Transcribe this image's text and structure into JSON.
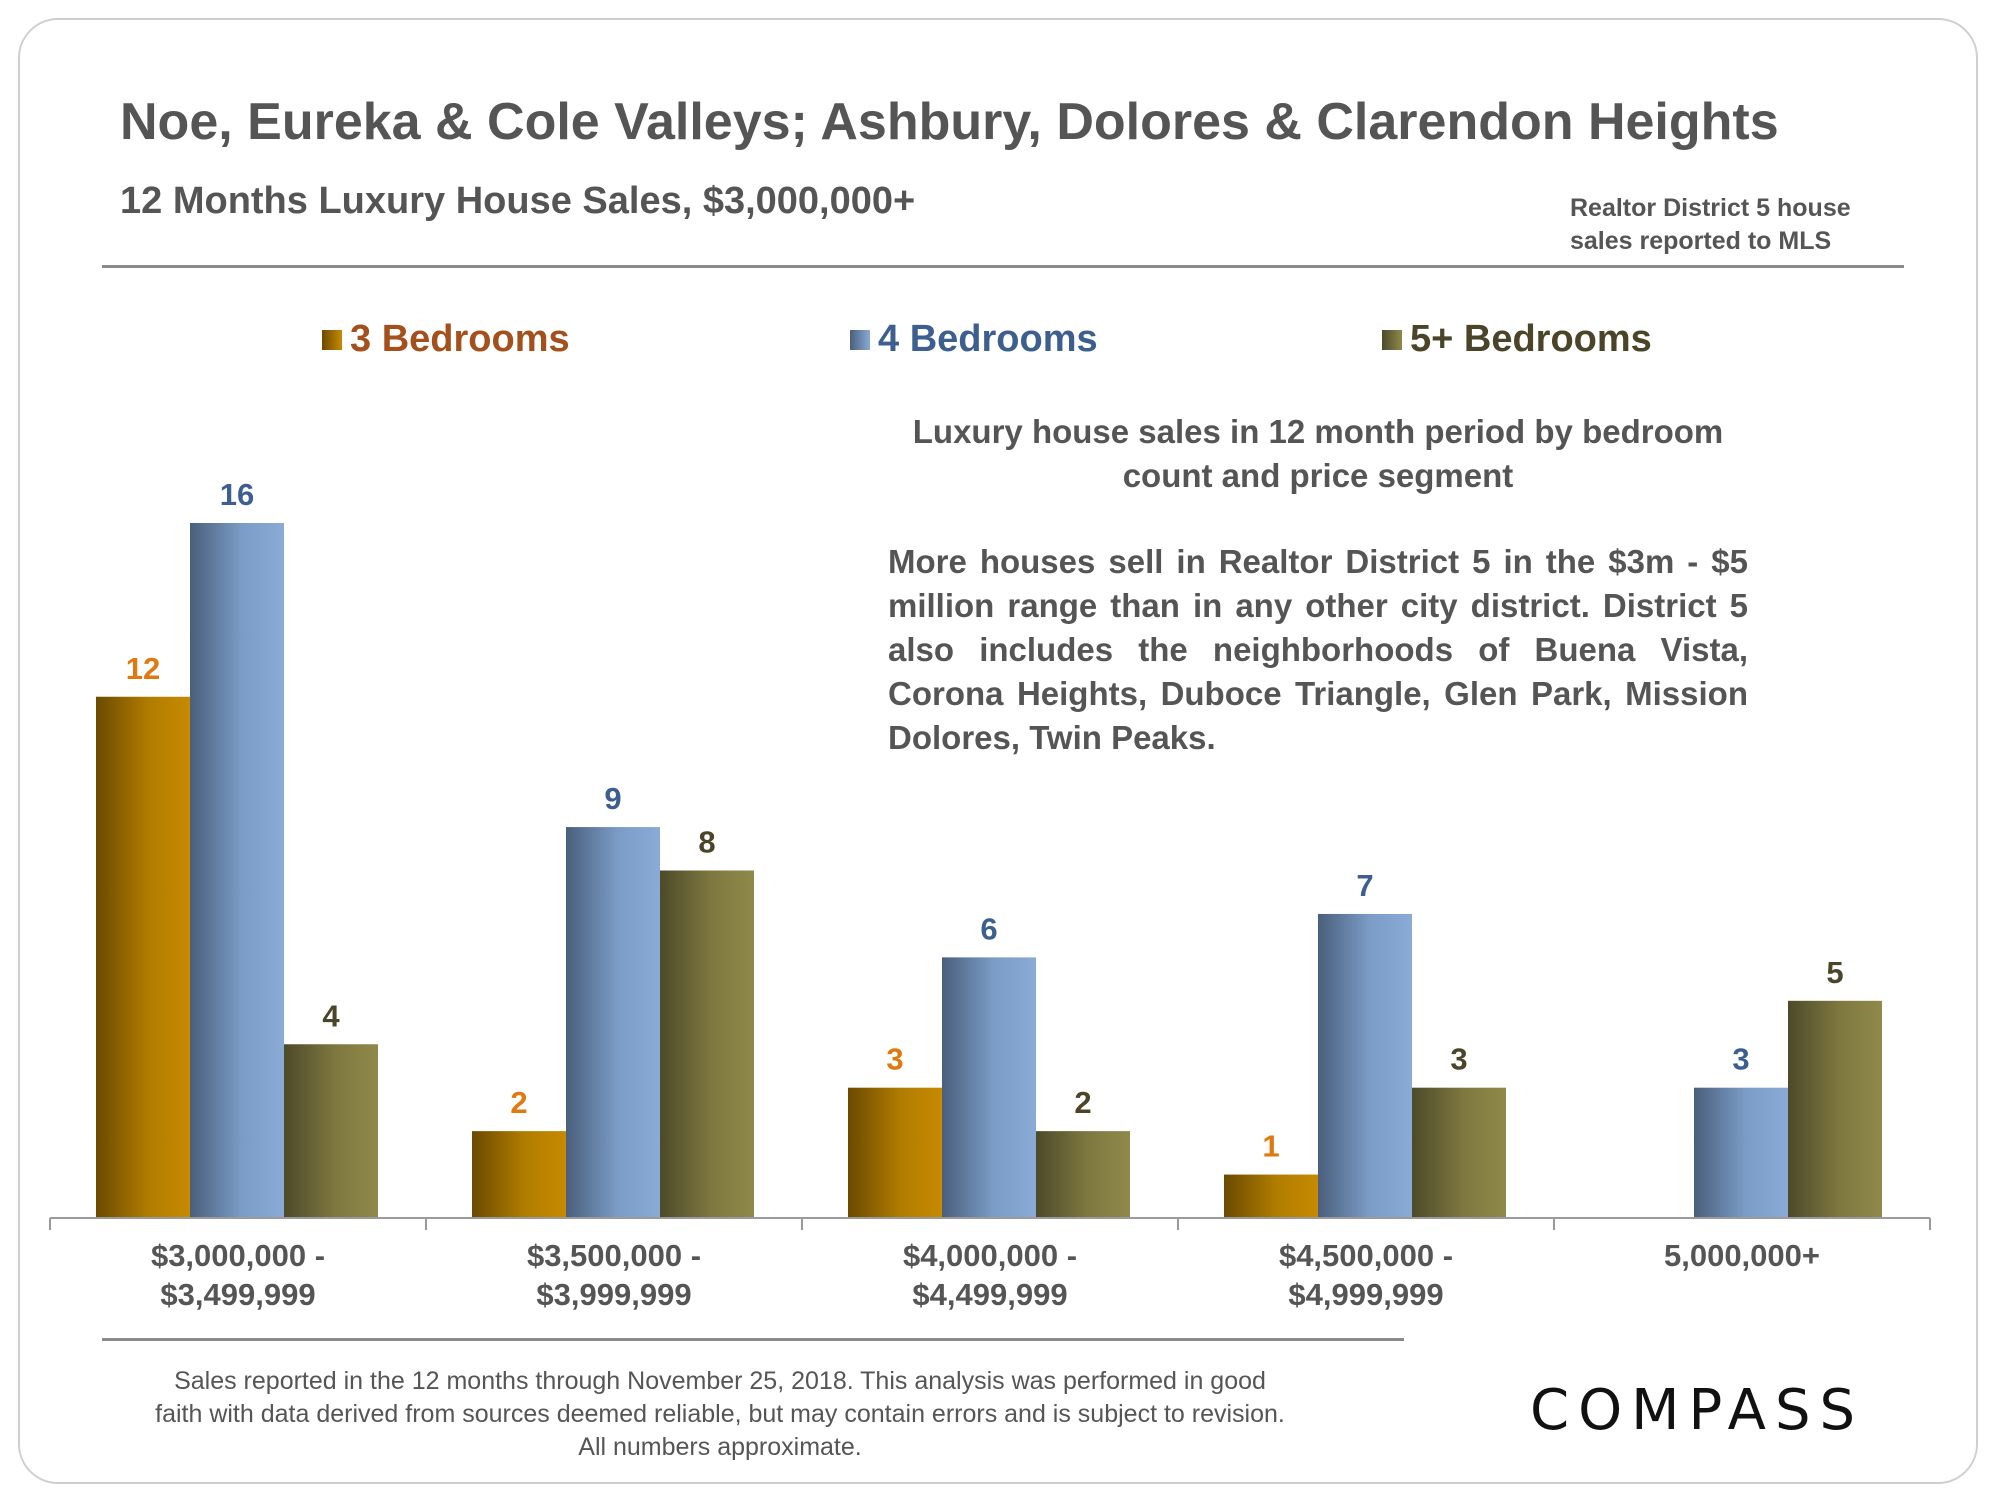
{
  "title": "Noe, Eureka & Cole Valleys; Ashbury, Dolores & Clarendon Heights",
  "subtitle": "12 Months Luxury House Sales, $3,000,000+",
  "source_note": "Realtor District 5 house sales reported to MLS",
  "annotation_heading": "Luxury house sales in 12 month period by bedroom count and price segment",
  "annotation_body": "More houses sell in Realtor District 5 in the $3m - $5 million range than in any other city district. District 5 also includes the neighborhoods of Buena Vista, Corona Heights, Duboce Triangle, Glen Park, Mission Dolores, Twin Peaks.",
  "footnote": "Sales reported in the 12 months through November 25, 2018. This analysis was performed in good faith with data derived from sources deemed reliable, but may contain errors and is subject to revision. All numbers approximate.",
  "logo": "COMPASS",
  "colors": {
    "bed3": "#c78a00",
    "bed4": "#8aabd6",
    "bed5": "#8f8a4a",
    "label_bed3": "#e07a10",
    "label_bed4": "#3d5f8f",
    "label_bed5": "#4a4528",
    "legend_bed3": "#a4501c",
    "legend_bed4": "#3d5f8f",
    "legend_bed5": "#4a4528",
    "text": "#555555"
  },
  "chart_data": {
    "type": "bar",
    "title": "12 Months Luxury House Sales, $3,000,000+",
    "categories": [
      "$3,000,000 -\n$3,499,999",
      "$3,500,000 -\n$3,999,999",
      "$4,000,000 -\n$4,499,999",
      "$4,500,000 -\n$4,999,999",
      "5,000,000+"
    ],
    "series": [
      {
        "name": "3 Bedrooms",
        "values": [
          12,
          2,
          3,
          1,
          null
        ]
      },
      {
        "name": "4 Bedrooms",
        "values": [
          16,
          9,
          6,
          7,
          3
        ]
      },
      {
        "name": "5+ Bedrooms",
        "values": [
          4,
          8,
          2,
          3,
          5
        ]
      }
    ],
    "ylim": [
      0,
      16
    ],
    "legend": "top",
    "grid": false,
    "data_labels": true
  }
}
